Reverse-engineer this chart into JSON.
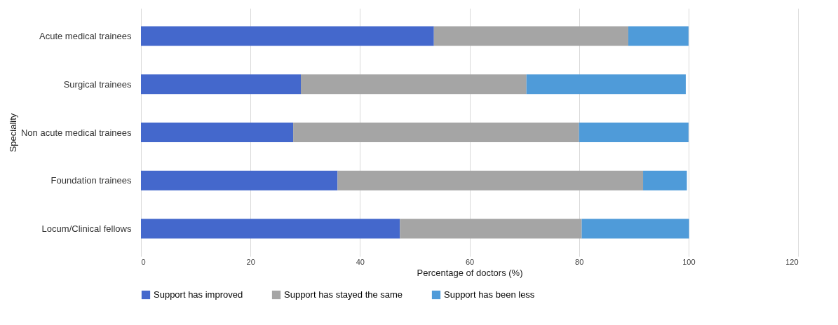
{
  "chart_data": {
    "type": "bar",
    "orientation": "horizontal",
    "stacked": true,
    "xlabel": "Percentage of doctors  (%)",
    "ylabel": "Speciality",
    "categories": [
      "Acute medical trainees",
      "Surgical trainees",
      "Non acute medical trainees",
      "Foundation trainees",
      "Locum/Clinical fellows"
    ],
    "series": [
      {
        "name": "Support has improved",
        "color": "#4468cc",
        "values": [
          53.5,
          29.2,
          27.8,
          35.9,
          47.3
        ]
      },
      {
        "name": "Support has stayed the same",
        "color": "#a5a5a5",
        "values": [
          35.5,
          41.2,
          52.2,
          55.8,
          33.2
        ]
      },
      {
        "name": "Support has been less",
        "color": "#4f9bd9",
        "values": [
          11,
          29.1,
          20,
          8,
          19.6
        ]
      }
    ],
    "xlim": [
      0,
      120
    ],
    "xticks": [
      0,
      20,
      40,
      60,
      80,
      100,
      120
    ],
    "grid": "x",
    "legend": "bottom"
  }
}
